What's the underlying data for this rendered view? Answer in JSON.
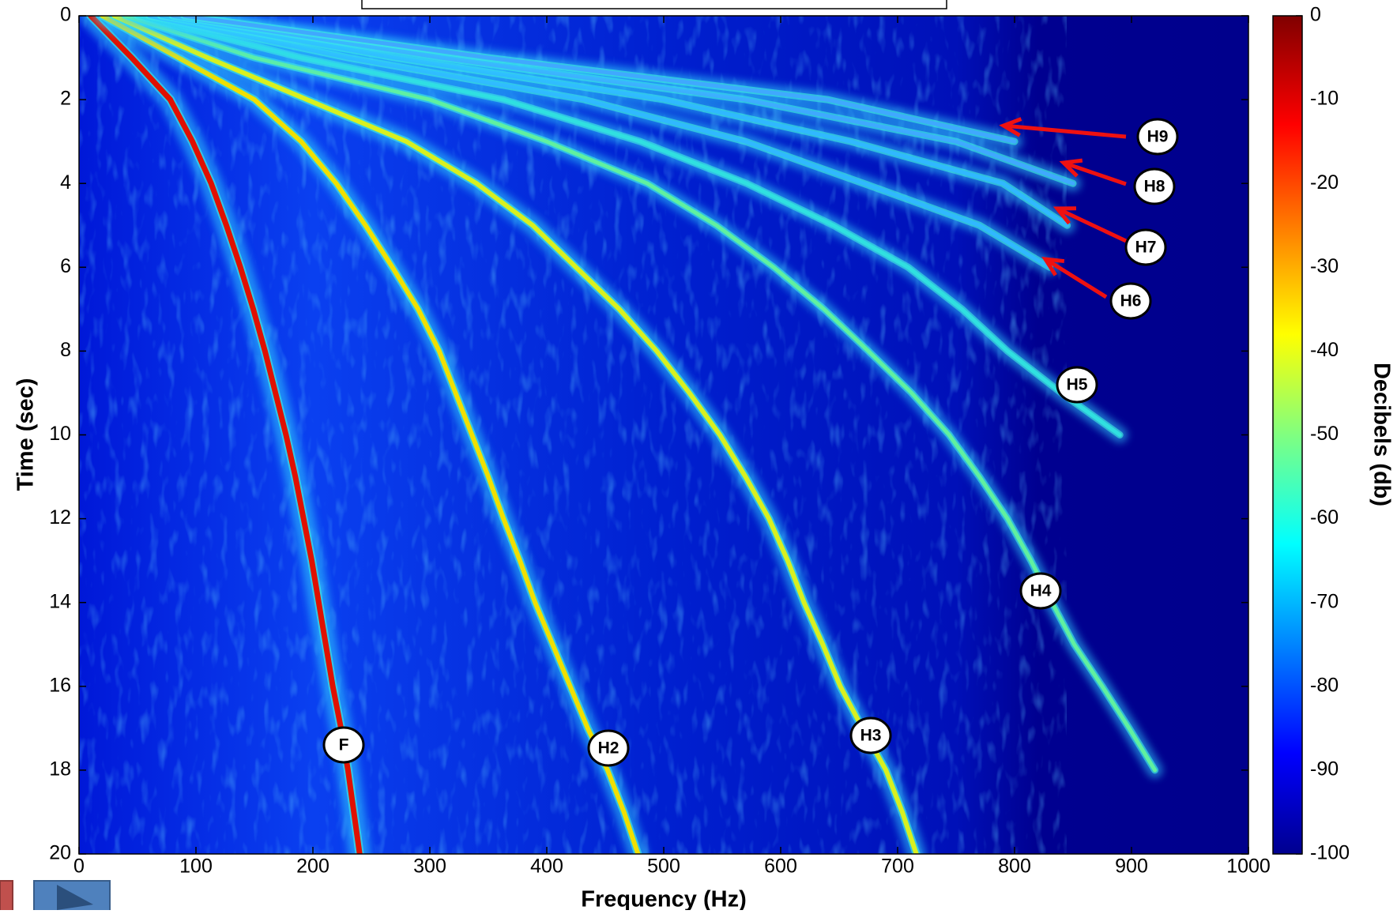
{
  "chart_data": {
    "type": "spectrogram",
    "xlabel": "Frequency (Hz)",
    "ylabel": "Time (sec)",
    "xlim": [
      0,
      1000
    ],
    "xticks": [
      0,
      100,
      200,
      300,
      400,
      500,
      600,
      700,
      800,
      900,
      1000
    ],
    "ylim": [
      0,
      20
    ],
    "yticks": [
      0,
      2,
      4,
      6,
      8,
      10,
      12,
      14,
      16,
      18,
      20
    ],
    "y_inverted": true,
    "x": [
      0,
      1,
      2,
      3,
      4,
      5,
      6,
      7,
      8,
      9,
      10,
      11,
      12,
      13,
      14,
      15,
      16,
      17,
      18,
      19,
      20
    ],
    "series": [
      {
        "name": "F",
        "color": "#e01000",
        "values": [
          10,
          45,
          78,
          97,
          113,
          126,
          138,
          149,
          159,
          168,
          177,
          185,
          192,
          199,
          205,
          211,
          217,
          224,
          230,
          235,
          240
        ]
      },
      {
        "name": "H2",
        "color": "#f0e000",
        "values": [
          20,
          85,
          150,
          190,
          220,
          245,
          268,
          290,
          308,
          322,
          336,
          350,
          363,
          377,
          390,
          405,
          420,
          435,
          452,
          466,
          478
        ]
      },
      {
        "name": "H3",
        "color": "#d8f020",
        "values": [
          30,
          110,
          195,
          280,
          340,
          388,
          425,
          462,
          494,
          522,
          548,
          570,
          590,
          606,
          620,
          636,
          651,
          670,
          690,
          704,
          716
        ]
      },
      {
        "name": "H4",
        "color": "#60f0a0",
        "values": [
          40,
          150,
          300,
          400,
          486,
          545,
          594,
          637,
          675,
          712,
          744,
          770,
          794,
          814,
          832,
          851,
          875,
          898,
          920,
          null,
          null
        ]
      },
      {
        "name": "H5",
        "color": "#30e0e0",
        "values": [
          50,
          190,
          363,
          480,
          571,
          645,
          709,
          755,
          794,
          840,
          890,
          null,
          null,
          null,
          null,
          null,
          null,
          null,
          null,
          null,
          null
        ]
      },
      {
        "name": "H6",
        "color": "#30b8ff",
        "values": [
          60,
          230,
          432,
          570,
          671,
          770,
          830,
          null,
          null,
          null,
          null,
          null,
          null,
          null,
          null,
          null,
          null,
          null,
          null,
          null,
          null
        ]
      },
      {
        "name": "H7",
        "color": "#30b8ff",
        "values": [
          70,
          270,
          500,
          660,
          790,
          845,
          null,
          null,
          null,
          null,
          null,
          null,
          null,
          null,
          null,
          null,
          null,
          null,
          null,
          null,
          null
        ]
      },
      {
        "name": "H8",
        "color": "#40a8ff",
        "values": [
          80,
          310,
          570,
          750,
          850,
          null,
          null,
          null,
          null,
          null,
          null,
          null,
          null,
          null,
          null,
          null,
          null,
          null,
          null,
          null,
          null
        ]
      },
      {
        "name": "H9",
        "color": "#40a8ff",
        "values": [
          90,
          350,
          640,
          800,
          null,
          null,
          null,
          null,
          null,
          null,
          null,
          null,
          null,
          null,
          null,
          null,
          null,
          null,
          null,
          null,
          null
        ]
      }
    ],
    "colorbar": {
      "label": "Decibels (db)",
      "lim": [
        -100,
        0
      ],
      "ticks": [
        0,
        -10,
        -20,
        -30,
        -40,
        -50,
        -60,
        -70,
        -80,
        -90,
        -100
      ]
    },
    "arrow_color": "#ee1111"
  }
}
